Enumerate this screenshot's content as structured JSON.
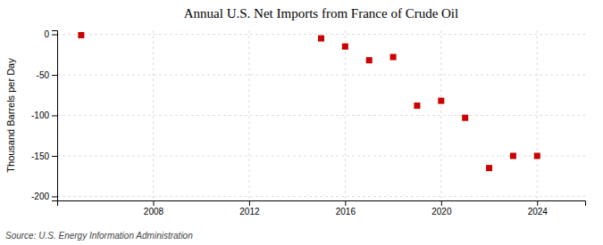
{
  "chart_data": {
    "type": "scatter",
    "title": "Annual U.S. Net Imports from France of Crude Oil",
    "ylabel": "Thousand Barrels per Day",
    "source": "Source: U.S. Energy Information Administration",
    "x": [
      2005,
      2015,
      2016,
      2017,
      2018,
      2019,
      2020,
      2021,
      2022,
      2023,
      2024
    ],
    "values": [
      -1,
      -5,
      -15,
      -32,
      -28,
      -88,
      -82,
      -103,
      -165,
      -150,
      -150
    ],
    "color": "#cc0000",
    "marker": "square",
    "xlim": [
      2004,
      2026
    ],
    "xticks": [
      2008,
      2012,
      2016,
      2020,
      2024
    ],
    "ylim": [
      -205,
      5
    ],
    "yticks": [
      0,
      -50,
      -100,
      -150,
      -200
    ],
    "grid": true
  }
}
